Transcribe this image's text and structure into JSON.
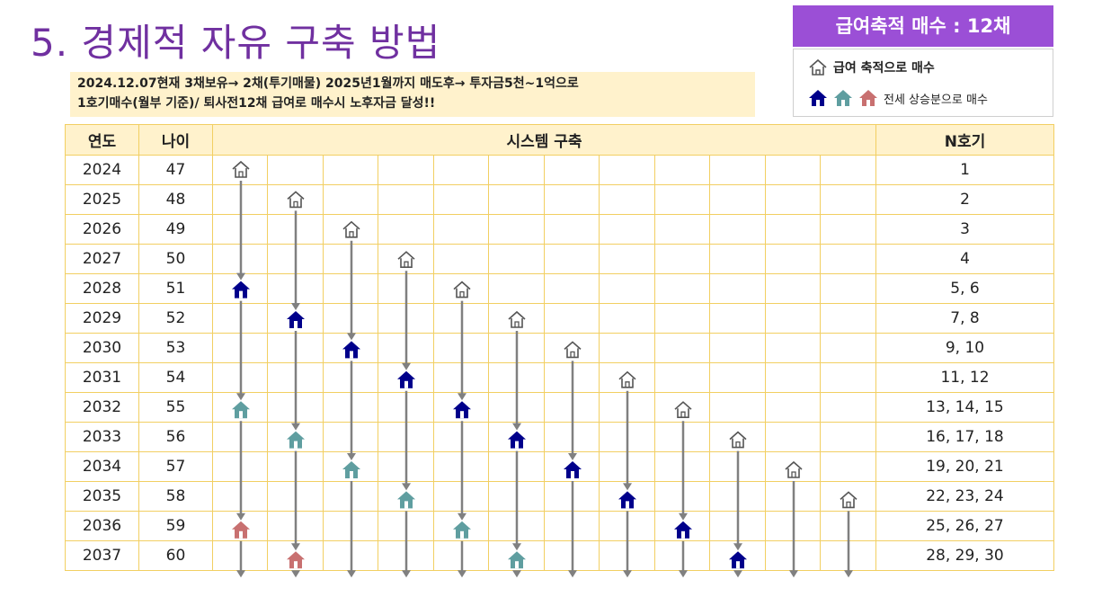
{
  "title": "5. 경제적 자유 구축 방법",
  "subtitle": {
    "line1": "2024.12.07현재 3채보유→ 2채(투기매물) 2025년1월까지 매도후→ 투자금5천~1억으로",
    "line2": "1호기매수(월부 기준)/  퇴사전12채 급여로 매수시 노후자금 달성!!"
  },
  "badge": "급여축적 매수 : 12채",
  "legend": {
    "salary_label": "급여 축적으로 매수",
    "jeonse_label": "전세 상승분으로 매수"
  },
  "colors": {
    "title": "#7030a0",
    "badge_bg": "#9b4fd6",
    "header_bg": "#fff2cc",
    "border": "#f2cf62",
    "house_salary": "#9e9e9e",
    "house_blue": "#00008b",
    "house_teal": "#5f9ea0",
    "house_red": "#c87070",
    "arrow": "#808080"
  },
  "table": {
    "headers": {
      "year": "연도",
      "age": "나이",
      "system": "시스템 구축",
      "n": "N호기"
    },
    "rows": [
      {
        "year": "2024",
        "age": "47",
        "n": "1"
      },
      {
        "year": "2025",
        "age": "48",
        "n": "2"
      },
      {
        "year": "2026",
        "age": "49",
        "n": "3"
      },
      {
        "year": "2027",
        "age": "50",
        "n": "4"
      },
      {
        "year": "2028",
        "age": "51",
        "n": "5, 6"
      },
      {
        "year": "2029",
        "age": "52",
        "n": "7, 8"
      },
      {
        "year": "2030",
        "age": "53",
        "n": "9, 10"
      },
      {
        "year": "2031",
        "age": "54",
        "n": "11, 12"
      },
      {
        "year": "2032",
        "age": "55",
        "n": "13, 14, 15"
      },
      {
        "year": "2033",
        "age": "56",
        "n": "16, 17, 18"
      },
      {
        "year": "2034",
        "age": "57",
        "n": "19, 20, 21"
      },
      {
        "year": "2035",
        "age": "58",
        "n": "22, 23, 24"
      },
      {
        "year": "2036",
        "age": "59",
        "n": "25, 26, 27"
      },
      {
        "year": "2037",
        "age": "60",
        "n": "28, 29, 30"
      }
    ]
  },
  "houses": [
    {
      "col": 0,
      "row": 0,
      "type": "outline"
    },
    {
      "col": 1,
      "row": 1,
      "type": "outline"
    },
    {
      "col": 2,
      "row": 2,
      "type": "outline"
    },
    {
      "col": 3,
      "row": 3,
      "type": "outline"
    },
    {
      "col": 4,
      "row": 4,
      "type": "outline"
    },
    {
      "col": 5,
      "row": 5,
      "type": "outline"
    },
    {
      "col": 6,
      "row": 6,
      "type": "outline"
    },
    {
      "col": 7,
      "row": 7,
      "type": "outline"
    },
    {
      "col": 8,
      "row": 8,
      "type": "outline"
    },
    {
      "col": 9,
      "row": 9,
      "type": "outline"
    },
    {
      "col": 10,
      "row": 10,
      "type": "outline"
    },
    {
      "col": 11,
      "row": 11,
      "type": "outline"
    },
    {
      "col": 0,
      "row": 4,
      "type": "blue"
    },
    {
      "col": 1,
      "row": 5,
      "type": "blue"
    },
    {
      "col": 2,
      "row": 6,
      "type": "blue"
    },
    {
      "col": 3,
      "row": 7,
      "type": "blue"
    },
    {
      "col": 4,
      "row": 8,
      "type": "blue"
    },
    {
      "col": 5,
      "row": 9,
      "type": "blue"
    },
    {
      "col": 6,
      "row": 10,
      "type": "blue"
    },
    {
      "col": 7,
      "row": 11,
      "type": "blue"
    },
    {
      "col": 8,
      "row": 12,
      "type": "blue"
    },
    {
      "col": 9,
      "row": 13,
      "type": "blue"
    },
    {
      "col": 0,
      "row": 8,
      "type": "teal"
    },
    {
      "col": 1,
      "row": 9,
      "type": "teal"
    },
    {
      "col": 2,
      "row": 10,
      "type": "teal"
    },
    {
      "col": 3,
      "row": 11,
      "type": "teal"
    },
    {
      "col": 4,
      "row": 12,
      "type": "teal"
    },
    {
      "col": 5,
      "row": 13,
      "type": "teal"
    },
    {
      "col": 0,
      "row": 12,
      "type": "red"
    },
    {
      "col": 1,
      "row": 13,
      "type": "red"
    }
  ]
}
